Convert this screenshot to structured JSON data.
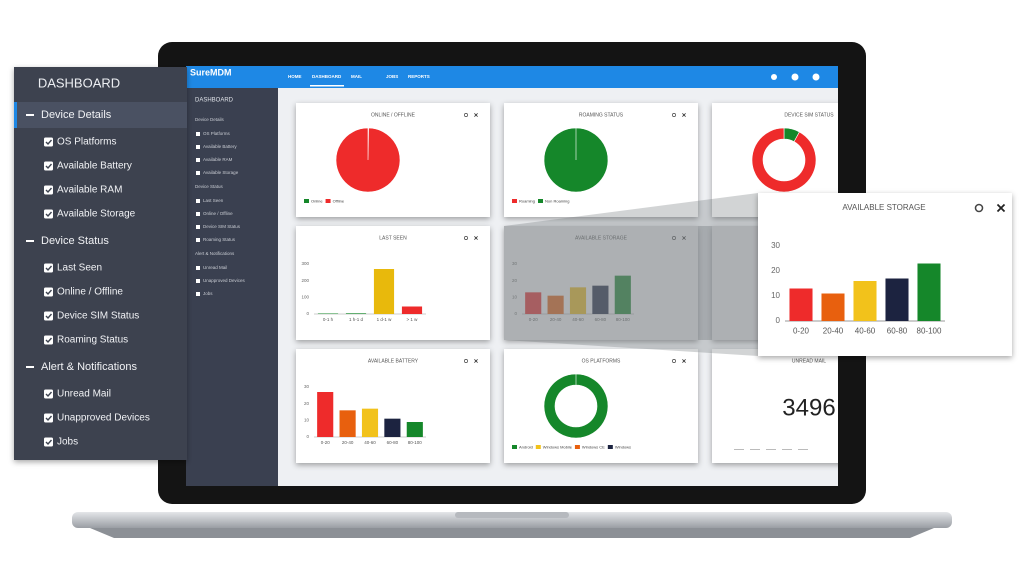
{
  "overlay": {
    "title": "DASHBOARD",
    "sections": [
      {
        "title": "Device Details",
        "items": [
          "OS Platforms",
          "Available Battery",
          "Available RAM",
          "Available Storage"
        ]
      },
      {
        "title": "Device Status",
        "items": [
          "Last Seen",
          "Online / Offline",
          "Device SIM Status",
          "Roaming Status"
        ]
      },
      {
        "title": "Alert & Notifications",
        "items": [
          "Unread Mail",
          "Unapproved Devices",
          "Jobs"
        ]
      }
    ]
  },
  "app": {
    "brand": "SureMDM",
    "nav": [
      "HOME",
      "DASHBOARD",
      "MAIL",
      "JOBS",
      "REPORTS"
    ]
  },
  "cards": [
    {
      "title": "ONLINE / OFFLINE",
      "type": "pie",
      "series": [
        {
          "name": "Online",
          "color": "#15872a",
          "value": 0.3
        },
        {
          "name": "Offline",
          "color": "#ee2b2b",
          "value": 99.7
        }
      ]
    },
    {
      "title": "ROAMING STATUS",
      "type": "pie",
      "series": [
        {
          "name": "Roaming",
          "color": "#ee2b2b",
          "value": 0
        },
        {
          "name": "Non Roaming",
          "color": "#15872a",
          "value": 100
        }
      ]
    },
    {
      "title": "DEVICE SIM STATUS",
      "type": "donut",
      "series": [
        {
          "color": "#15872a",
          "value": 8
        },
        {
          "color": "#ee2b2b",
          "value": 92
        }
      ]
    },
    {
      "title": "LAST SEEN",
      "type": "bar",
      "categories": [
        "0-1 h",
        "1 h-1 d",
        "1 d-1 w",
        "> 1 w"
      ],
      "values": [
        3,
        4,
        270,
        45
      ],
      "colors": [
        "#15872a",
        "#15872a",
        "#e8b90c",
        "#ee2b2b"
      ],
      "ylim": [
        0,
        300
      ],
      "yticks": [
        0,
        100,
        200,
        300
      ]
    },
    {
      "title": "AVAILABLE STORAGE",
      "type": "bar",
      "categories": [
        "0-20",
        "20-40",
        "40-60",
        "60-80",
        "80-100"
      ],
      "values": [
        13,
        11,
        16,
        17,
        23
      ],
      "colors": [
        "#ee2b2b",
        "#e8600e",
        "#f2c21b",
        "#1c2340",
        "#15872a"
      ],
      "ylim": [
        0,
        30
      ],
      "yticks": [
        0,
        10,
        20,
        30
      ]
    },
    {
      "title": "AVAILABLE BATTERY",
      "type": "bar",
      "categories": [
        "0-20",
        "20-40",
        "40-60",
        "60-80",
        "80-100"
      ],
      "values": [
        27,
        16,
        17,
        11,
        9
      ],
      "colors": [
        "#ee2b2b",
        "#e8600e",
        "#f2c21b",
        "#1c2340",
        "#15872a"
      ],
      "ylim": [
        0,
        30
      ],
      "yticks": [
        0,
        10,
        20,
        30
      ]
    },
    {
      "title": "OS PLATFORMS",
      "type": "donut",
      "series": [
        {
          "name": "Android",
          "color": "#15872a",
          "value": 100
        },
        {
          "name": "Windows Mobile",
          "color": "#f2c21b",
          "value": 0
        },
        {
          "name": "Windows CE",
          "color": "#e8600e",
          "value": 0
        },
        {
          "name": "Windows",
          "color": "#1c2340",
          "value": 0
        }
      ]
    },
    {
      "title": "UNREAD MAIL",
      "type": "number",
      "value": 3496
    }
  ]
}
